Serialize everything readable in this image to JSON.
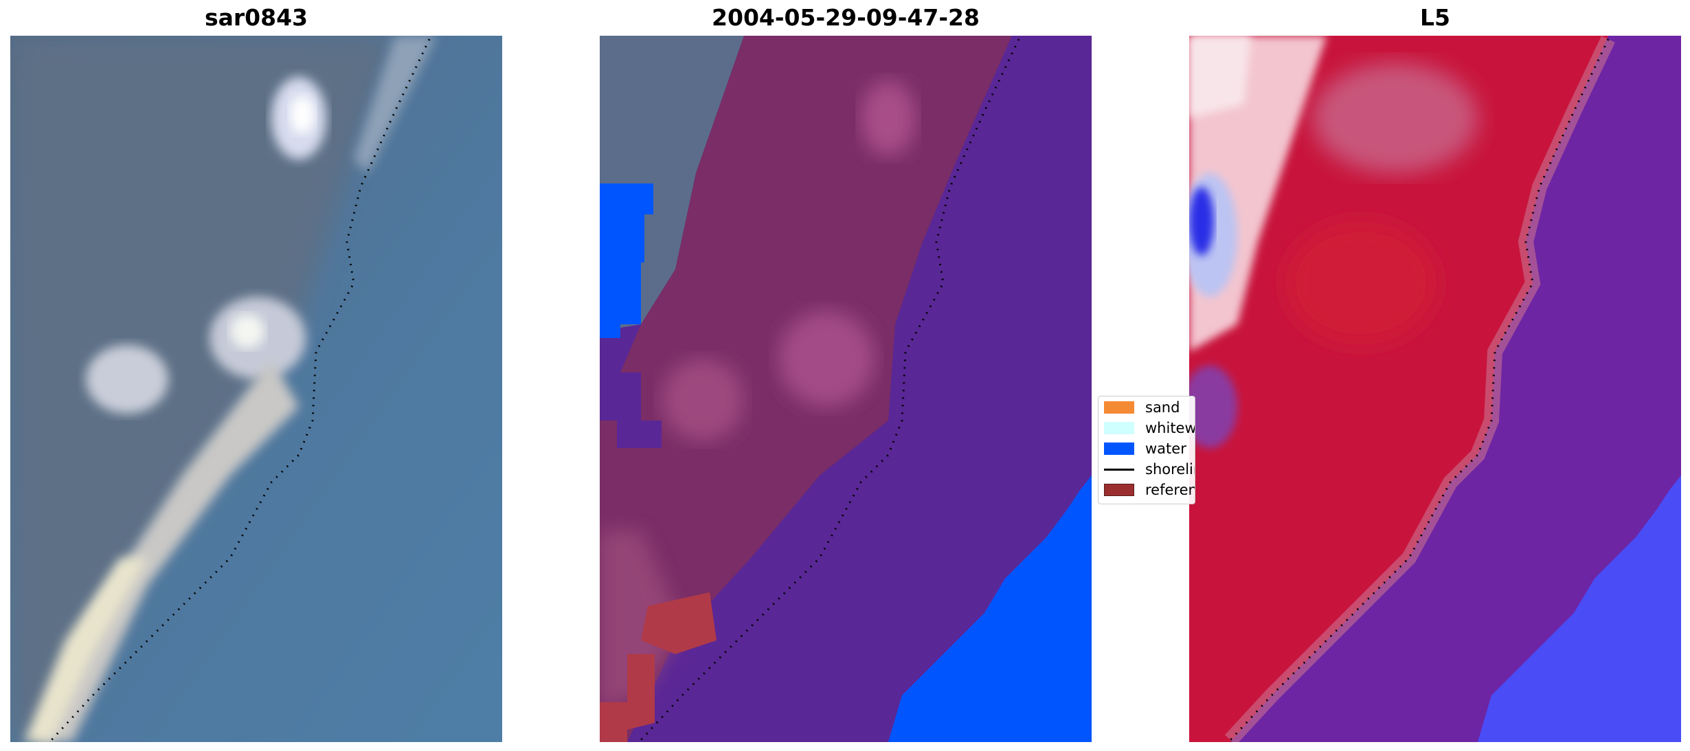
{
  "panels": [
    {
      "title": "sar0843"
    },
    {
      "title": "2004-05-29-09-47-28"
    },
    {
      "title": "L5"
    }
  ],
  "legend": {
    "items": [
      {
        "label": "sand",
        "color": "#f58a35",
        "kind": "patch"
      },
      {
        "label": "whitewater",
        "color": "#cfffff",
        "kind": "patch"
      },
      {
        "label": "water",
        "color": "#0055ff",
        "kind": "patch"
      },
      {
        "label": "shoreline",
        "color": "#000000",
        "kind": "line"
      },
      {
        "label": "reference",
        "color": "#9b2f2f",
        "kind": "patch"
      }
    ]
  },
  "colors": {
    "rgb_background": "#5b7d9c",
    "classified_land": "#7a2d66",
    "classified_sea": "#5a2796",
    "classified_water": "#0055ff",
    "index_land": "#c8143c",
    "index_sea": "#6d25a4",
    "index_water": "#4a4cf6"
  }
}
